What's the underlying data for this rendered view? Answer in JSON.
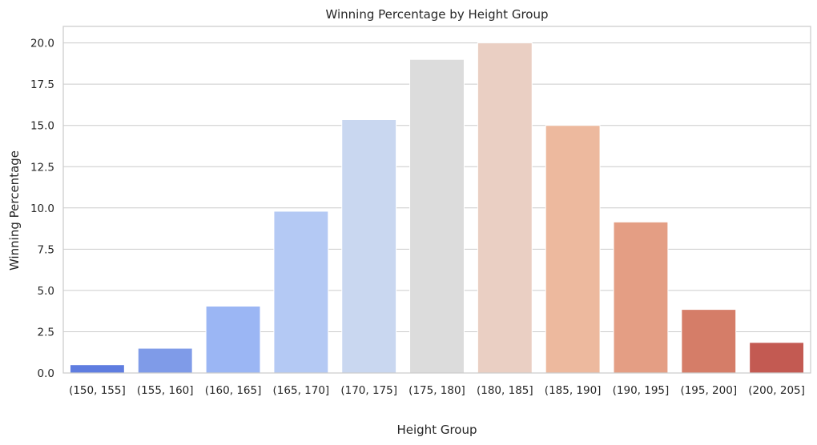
{
  "chart_data": {
    "type": "bar",
    "title": "Winning Percentage by Height Group",
    "xlabel": "Height Group",
    "ylabel": "Winning Percentage",
    "categories": [
      "(150, 155]",
      "(155, 160]",
      "(160, 165]",
      "(165, 170]",
      "(170, 175]",
      "(175, 180]",
      "(180, 185]",
      "(185, 190]",
      "(190, 195]",
      "(195, 200]",
      "(200, 205]"
    ],
    "values": [
      0.5,
      1.5,
      4.05,
      9.8,
      15.35,
      19.0,
      20.0,
      15.0,
      9.15,
      3.85,
      1.85
    ],
    "colors": [
      "#5f7de0",
      "#7f9be8",
      "#9bb6f4",
      "#b4c9f4",
      "#c9d7f0",
      "#dcdcdc",
      "#eacfc3",
      "#edb99e",
      "#e49e84",
      "#d57d68",
      "#c35a52"
    ],
    "ylim": [
      0,
      21
    ],
    "yticks": [
      "0.0",
      "2.5",
      "5.0",
      "7.5",
      "10.0",
      "12.5",
      "15.0",
      "17.5",
      "20.0"
    ],
    "ytick_values": [
      0,
      2.5,
      5,
      7.5,
      10,
      12.5,
      15,
      17.5,
      20
    ],
    "grid": true,
    "legend": "none"
  }
}
